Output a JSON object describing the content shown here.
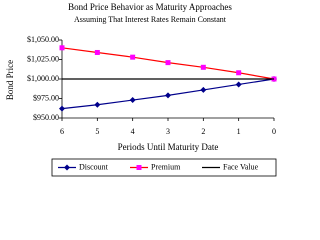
{
  "chart_data": {
    "type": "line",
    "title": "Bond Price Behavior as Maturity Approaches",
    "subtitle": "Assuming That Interest Rates Remain Constant",
    "x_label": "Periods Until Maturity Date",
    "y_label": "Bond Price",
    "categories": [
      "6",
      "5",
      "4",
      "3",
      "2",
      "1",
      "0"
    ],
    "series": [
      {
        "name": "Discount",
        "color": "#00008b",
        "marker": "diamond",
        "marker_color": "#00008b",
        "values": [
          962,
          967,
          973,
          979,
          986,
          993,
          1000
        ]
      },
      {
        "name": "Premium",
        "color": "#ff0000",
        "marker": "square",
        "marker_color": "#ff00ff",
        "values": [
          1040,
          1034,
          1028,
          1021,
          1015,
          1008,
          1000
        ]
      },
      {
        "name": "Face Value",
        "color": "#000000",
        "marker": "none",
        "marker_color": "#000000",
        "values": [
          1000,
          1000,
          1000,
          1000,
          1000,
          1000,
          1000
        ]
      }
    ],
    "ylim": [
      950,
      1050
    ],
    "yticks": [
      {
        "value": 950,
        "label": "$950.00"
      },
      {
        "value": 975,
        "label": "$975.00"
      },
      {
        "value": 1000,
        "label": "$1,000.00"
      },
      {
        "value": 1025,
        "label": "$1,025.00"
      },
      {
        "value": 1050,
        "label": "$1,050.00"
      }
    ],
    "grid": false,
    "legend": "bottom"
  }
}
